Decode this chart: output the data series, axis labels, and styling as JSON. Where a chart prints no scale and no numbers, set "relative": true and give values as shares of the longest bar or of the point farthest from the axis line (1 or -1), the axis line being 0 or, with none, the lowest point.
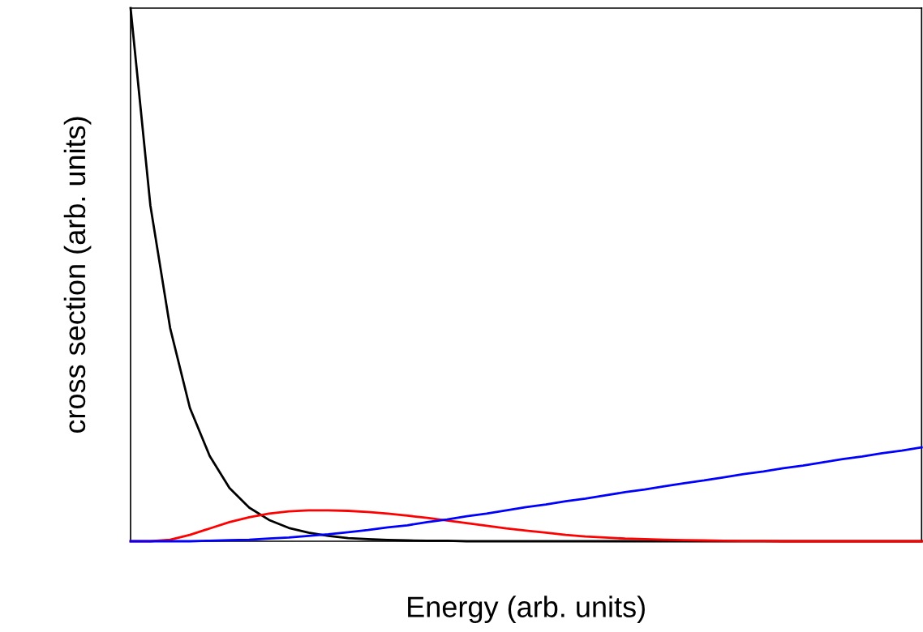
{
  "chart_data": {
    "type": "line",
    "relative": true,
    "xlabel": "Energy (arb. units)",
    "ylabel": "cross section (arb. units)",
    "grid": false,
    "legend": false,
    "marker": "none",
    "line_style": "solid",
    "categories": [
      null,
      null,
      null,
      null,
      null,
      null,
      null,
      null,
      null,
      null,
      null,
      null,
      null,
      null,
      null,
      null,
      null,
      null,
      null,
      null,
      null,
      null,
      null,
      null,
      null,
      null,
      null,
      null,
      null,
      null,
      null,
      null,
      null,
      null,
      null,
      null,
      null,
      null,
      null,
      null,
      null
    ],
    "series": [
      {
        "color": "#000000",
        "values": [
          1.0,
          0.63,
          0.4,
          0.25,
          0.16,
          0.1,
          0.063,
          0.04,
          0.025,
          0.016,
          0.01,
          0.006,
          0.004,
          0.0025,
          0.0015,
          0.001,
          0.001,
          0,
          0,
          0,
          0,
          0,
          0,
          0,
          0,
          0,
          0,
          0,
          0,
          0,
          0,
          0,
          0,
          0,
          0,
          0,
          0,
          0,
          0,
          0,
          0
        ]
      },
      {
        "color": "#ff0000",
        "values": [
          0,
          0,
          0.003,
          0.012,
          0.024,
          0.036,
          0.045,
          0.052,
          0.056,
          0.058,
          0.058,
          0.057,
          0.055,
          0.052,
          0.048,
          0.044,
          0.039,
          0.034,
          0.029,
          0.024,
          0.02,
          0.016,
          0.012,
          0.009,
          0.007,
          0.005,
          0.004,
          0.003,
          0.002,
          0.0015,
          0.001,
          0.0005,
          0.0005,
          0,
          0,
          0,
          0,
          0,
          0,
          0,
          0
        ]
      },
      {
        "color": "#0000ff",
        "values": [
          0,
          0,
          0,
          0,
          0.001,
          0.002,
          0.003,
          0.005,
          0.007,
          0.01,
          0.013,
          0.017,
          0.021,
          0.026,
          0.03,
          0.036,
          0.041,
          0.047,
          0.052,
          0.058,
          0.064,
          0.069,
          0.075,
          0.08,
          0.086,
          0.092,
          0.097,
          0.103,
          0.109,
          0.114,
          0.12,
          0.126,
          0.131,
          0.137,
          0.142,
          0.148,
          0.154,
          0.159,
          0.165,
          0.17,
          0.176
        ]
      }
    ]
  }
}
